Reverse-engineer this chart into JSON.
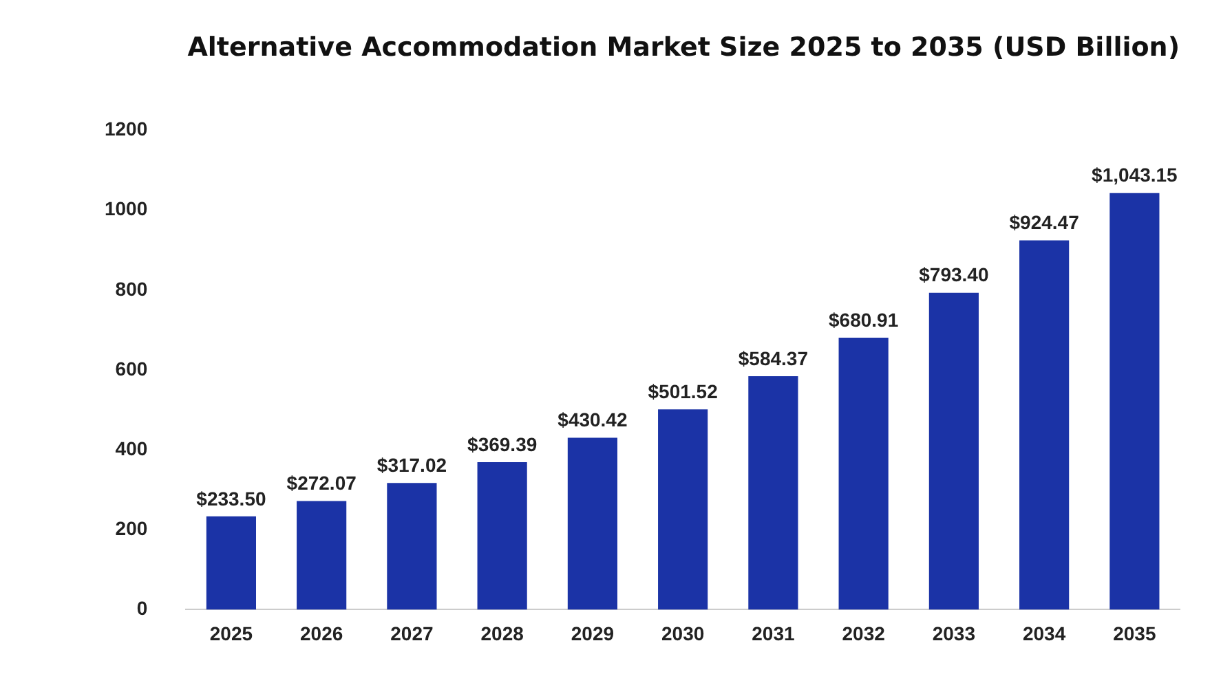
{
  "chart_data": {
    "type": "bar",
    "title": "Alternative Accommodation Market Size 2025 to 2035 (USD Billion)",
    "categories": [
      "2025",
      "2026",
      "2027",
      "2028",
      "2029",
      "2030",
      "2031",
      "2032",
      "2033",
      "2034",
      "2035"
    ],
    "values": [
      233.5,
      272.07,
      317.02,
      369.39,
      430.42,
      501.52,
      584.37,
      680.91,
      793.4,
      924.47,
      1043.15
    ],
    "value_labels": [
      "$233.50",
      "$272.07",
      "$317.02",
      "$369.39",
      "$430.42",
      "$501.52",
      "$584.37",
      "$680.91",
      "$793.40",
      "$924.47",
      "$1,043.15"
    ],
    "color": "#1b33a6",
    "ylim": [
      0,
      1200
    ],
    "yticks": [
      0,
      200,
      400,
      600,
      800,
      1000,
      1200
    ],
    "grid": false,
    "legend": false
  }
}
